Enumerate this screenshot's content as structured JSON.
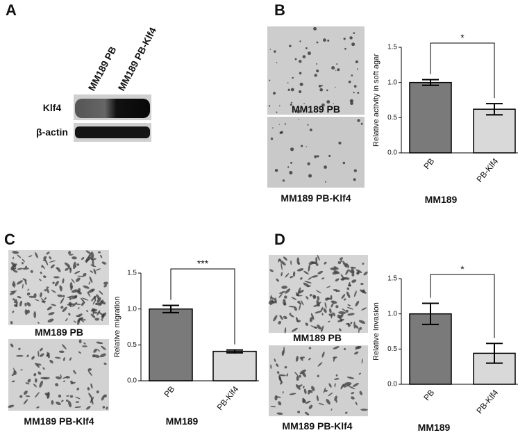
{
  "panel_labels": [
    "A",
    "B",
    "C",
    "D"
  ],
  "blot": {
    "lanes": [
      "MM189 PB",
      "MM189 PB-Klf4"
    ],
    "rows": [
      "Klf4",
      "β-actin"
    ]
  },
  "captions": {
    "B": [
      "MM189 PB",
      "MM189 PB-Klf4"
    ],
    "C": [
      "MM189 PB",
      "MM189 PB-Klf4"
    ],
    "D": [
      "MM189 PB",
      "MM189 PB-Klf4"
    ]
  },
  "chart_data": [
    {
      "type": "bar",
      "ylabel": "Relative activity in soft agar",
      "xlabel": "MM189",
      "categories": [
        "PB",
        "PB-Klf4"
      ],
      "values": [
        1.0,
        0.62
      ],
      "errors": [
        0.04,
        0.08
      ],
      "colors": [
        "#7a7a7a",
        "#d9d9d9"
      ],
      "significance": "*",
      "ylim": [
        0,
        1.5
      ],
      "yticks": [
        {
          "value": 0,
          "label": "0.0"
        },
        {
          "value": 0.5,
          "label": "0.5"
        },
        {
          "value": 1,
          "label": "1.0"
        },
        {
          "value": 1.5,
          "label": "1.5"
        }
      ]
    },
    {
      "type": "bar",
      "ylabel": "Relative migration",
      "xlabel": "MM189",
      "categories": [
        "PB",
        "PB-Klf4"
      ],
      "values": [
        1.0,
        0.41
      ],
      "errors": [
        0.05,
        0.02
      ],
      "colors": [
        "#7a7a7a",
        "#d9d9d9"
      ],
      "significance": "***",
      "ylim": [
        0,
        1.5
      ],
      "yticks": [
        {
          "value": 0,
          "label": "0.0"
        },
        {
          "value": 0.5,
          "label": "0.5"
        },
        {
          "value": 1,
          "label": "1.0"
        },
        {
          "value": 1.5,
          "label": "1.5"
        }
      ]
    },
    {
      "type": "bar",
      "ylabel": "Relative Invasion",
      "xlabel": "MM189",
      "categories": [
        "PB",
        "PB-Klf4"
      ],
      "values": [
        1.0,
        0.44
      ],
      "errors": [
        0.15,
        0.14
      ],
      "colors": [
        "#7a7a7a",
        "#d9d9d9"
      ],
      "significance": "*",
      "ylim": [
        0,
        1.5
      ],
      "yticks": [
        {
          "value": 0,
          "label": "0.0"
        },
        {
          "value": 0.5,
          "label": "0.5"
        },
        {
          "value": 1,
          "label": "1.0"
        },
        {
          "value": 1.5,
          "label": "1.5"
        }
      ]
    }
  ]
}
